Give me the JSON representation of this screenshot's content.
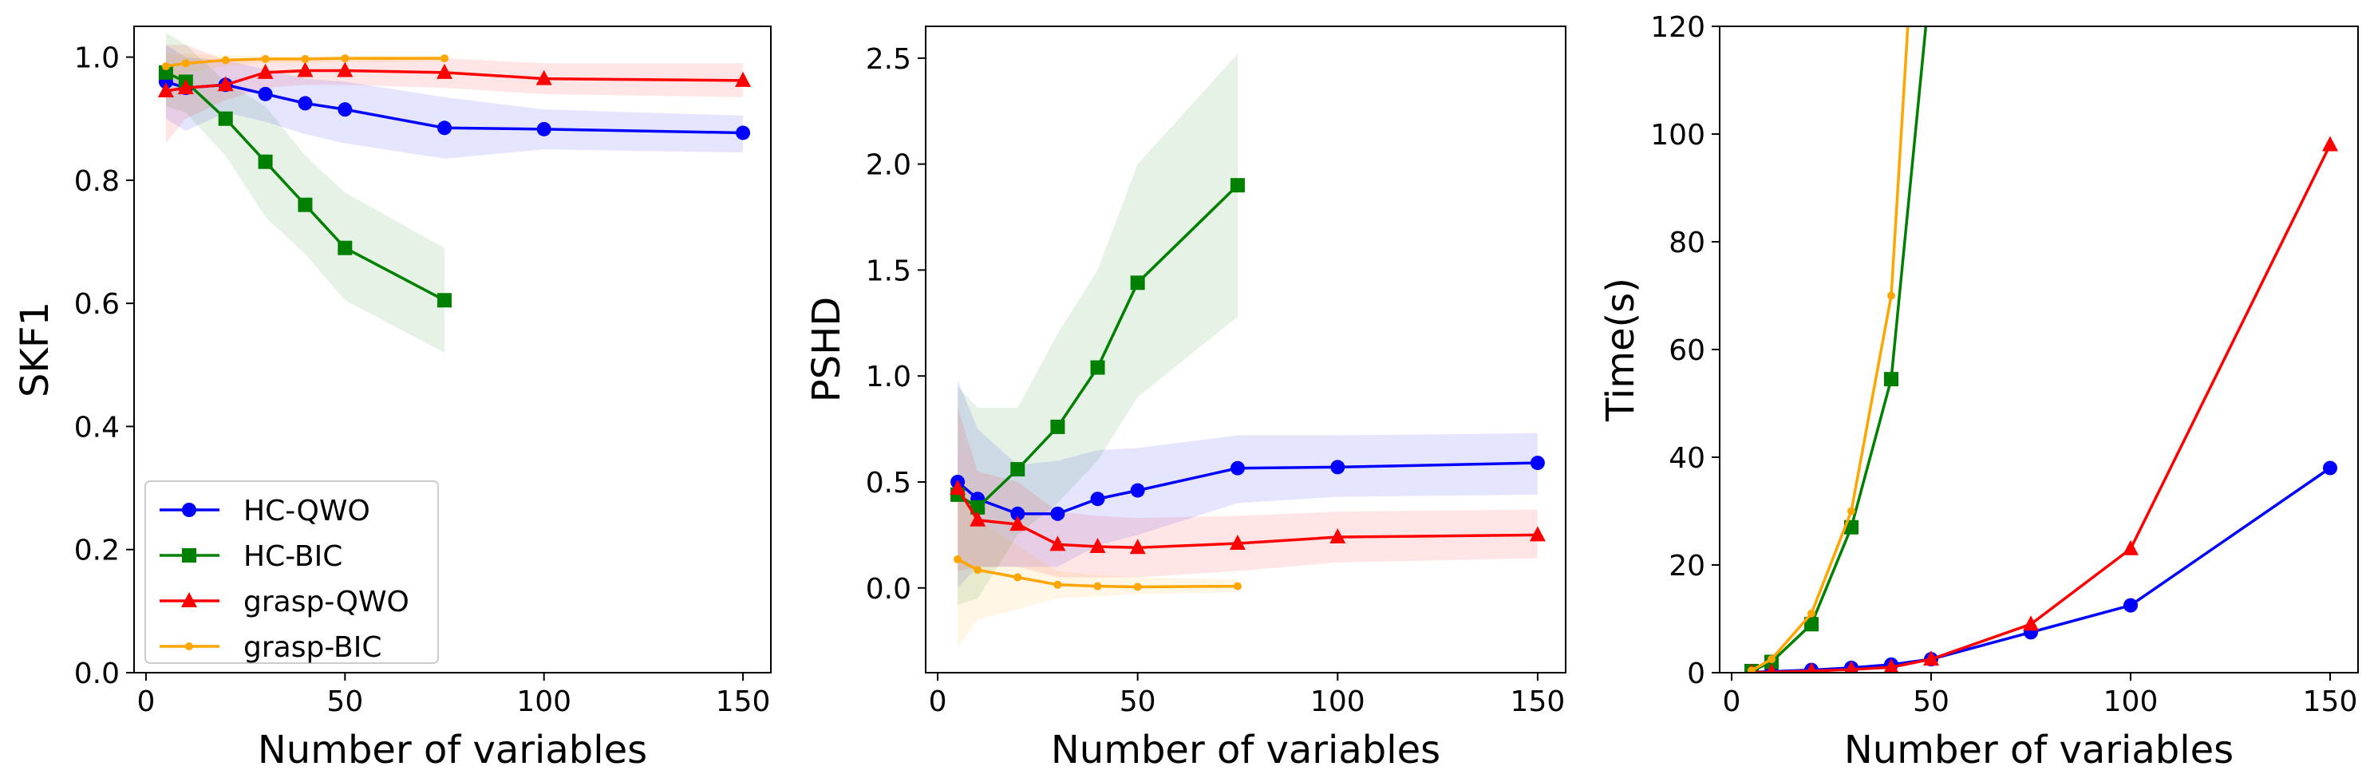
{
  "series_styles": [
    {
      "name": "HC-QWO",
      "color": "#0000ff",
      "marker": "circle"
    },
    {
      "name": "HC-BIC",
      "color": "#008000",
      "marker": "square"
    },
    {
      "name": "grasp-QWO",
      "color": "#ff0000",
      "marker": "triangle"
    },
    {
      "name": "grasp-BIC",
      "color": "#ffa500",
      "marker": "point"
    }
  ],
  "chart_data": [
    {
      "type": "line",
      "title": "",
      "xlabel": "Number of variables",
      "ylabel": "SKF1",
      "xlim": [
        -3,
        157
      ],
      "ylim": [
        0.0,
        1.05
      ],
      "xticks": [
        0,
        50,
        100,
        150
      ],
      "yticks": [
        0.0,
        0.2,
        0.4,
        0.6,
        0.8,
        1.0
      ],
      "ytick_labels": [
        "0.0",
        "0.2",
        "0.4",
        "0.6",
        "0.8",
        "1.0"
      ],
      "grid": false,
      "legend": {
        "placement": "lower-left",
        "entries": [
          "HC-QWO",
          "HC-BIC",
          "grasp-QWO",
          "grasp-BIC"
        ]
      },
      "series": [
        {
          "name": "HC-QWO",
          "x": [
            5,
            10,
            20,
            30,
            40,
            50,
            75,
            100,
            150
          ],
          "y": [
            0.96,
            0.95,
            0.955,
            0.94,
            0.925,
            0.915,
            0.885,
            0.883,
            0.877
          ],
          "lower": [
            0.9,
            0.88,
            0.91,
            0.895,
            0.875,
            0.86,
            0.835,
            0.85,
            0.845
          ],
          "upper": [
            1.02,
            1.0,
            0.995,
            0.98,
            0.965,
            0.96,
            0.935,
            0.915,
            0.905
          ]
        },
        {
          "name": "HC-BIC",
          "x": [
            5,
            10,
            20,
            30,
            40,
            50,
            75
          ],
          "y": [
            0.975,
            0.96,
            0.9,
            0.83,
            0.76,
            0.69,
            0.605
          ],
          "lower": [
            0.92,
            0.91,
            0.84,
            0.74,
            0.68,
            0.605,
            0.52
          ],
          "upper": [
            1.04,
            1.02,
            0.96,
            0.92,
            0.84,
            0.78,
            0.69
          ]
        },
        {
          "name": "grasp-QWO",
          "x": [
            5,
            10,
            20,
            30,
            40,
            50,
            75,
            100,
            150
          ],
          "y": [
            0.945,
            0.95,
            0.955,
            0.975,
            0.978,
            0.978,
            0.975,
            0.965,
            0.962
          ],
          "lower": [
            0.86,
            0.9,
            0.93,
            0.95,
            0.955,
            0.955,
            0.95,
            0.94,
            0.935
          ],
          "upper": [
            1.02,
            1.02,
            0.995,
            0.995,
            0.995,
            0.995,
            0.998,
            0.99,
            0.99
          ]
        },
        {
          "name": "grasp-BIC",
          "x": [
            5,
            10,
            20,
            30,
            40,
            50,
            75
          ],
          "y": [
            0.985,
            0.99,
            0.995,
            0.997,
            0.997,
            0.998,
            0.998
          ],
          "lower": [
            0.96,
            0.975,
            0.985,
            0.99,
            0.99,
            0.992,
            0.993
          ],
          "upper": [
            1.005,
            1.005,
            1.003,
            1.002,
            1.002,
            1.002,
            1.002
          ]
        }
      ]
    },
    {
      "type": "line",
      "title": "",
      "xlabel": "Number of variables",
      "ylabel": "PSHD",
      "xlim": [
        -3,
        157
      ],
      "ylim": [
        -0.4,
        2.65
      ],
      "xticks": [
        0,
        50,
        100,
        150
      ],
      "yticks": [
        0.0,
        0.5,
        1.0,
        1.5,
        2.0,
        2.5
      ],
      "ytick_labels": [
        "0.0",
        "0.5",
        "1.0",
        "1.5",
        "2.0",
        "2.5"
      ],
      "grid": false,
      "legend": null,
      "series": [
        {
          "name": "HC-QWO",
          "x": [
            5,
            10,
            20,
            30,
            40,
            50,
            75,
            100,
            150
          ],
          "y": [
            0.5,
            0.42,
            0.35,
            0.35,
            0.42,
            0.46,
            0.565,
            0.57,
            0.59
          ],
          "lower": [
            0.0,
            0.1,
            0.1,
            0.1,
            0.2,
            0.25,
            0.4,
            0.43,
            0.44
          ],
          "upper": [
            0.98,
            0.75,
            0.58,
            0.6,
            0.65,
            0.66,
            0.72,
            0.72,
            0.73
          ]
        },
        {
          "name": "HC-BIC",
          "x": [
            5,
            10,
            20,
            30,
            40,
            50,
            75
          ],
          "y": [
            0.44,
            0.38,
            0.56,
            0.76,
            1.04,
            1.44,
            1.9
          ],
          "lower": [
            -0.08,
            -0.05,
            0.25,
            0.4,
            0.6,
            0.9,
            1.28
          ],
          "upper": [
            0.95,
            0.85,
            0.85,
            1.2,
            1.5,
            2.0,
            2.52
          ]
        },
        {
          "name": "grasp-QWO",
          "x": [
            5,
            10,
            20,
            30,
            40,
            50,
            75,
            100,
            150
          ],
          "y": [
            0.47,
            0.32,
            0.3,
            0.205,
            0.195,
            0.19,
            0.21,
            0.24,
            0.25
          ],
          "lower": [
            0.08,
            0.1,
            0.1,
            0.05,
            0.05,
            0.05,
            0.08,
            0.12,
            0.14
          ],
          "upper": [
            0.85,
            0.55,
            0.5,
            0.36,
            0.34,
            0.33,
            0.34,
            0.36,
            0.37
          ]
        },
        {
          "name": "grasp-BIC",
          "x": [
            5,
            10,
            20,
            30,
            40,
            50,
            75
          ],
          "y": [
            0.135,
            0.085,
            0.05,
            0.015,
            0.008,
            0.005,
            0.008
          ],
          "lower": [
            -0.28,
            -0.15,
            -0.1,
            -0.05,
            -0.04,
            -0.03,
            -0.02
          ],
          "upper": [
            0.52,
            0.32,
            0.2,
            0.08,
            0.06,
            0.05,
            0.04
          ]
        }
      ]
    },
    {
      "type": "line",
      "title": "",
      "xlabel": "Number of variables",
      "ylabel": "Time(s)",
      "xlim": [
        -3,
        157
      ],
      "ylim": [
        0,
        120
      ],
      "xticks": [
        0,
        50,
        100,
        150
      ],
      "yticks": [
        0,
        20,
        40,
        60,
        80,
        100,
        120
      ],
      "ytick_labels": [
        "0",
        "20",
        "40",
        "60",
        "80",
        "100",
        "120"
      ],
      "grid": false,
      "legend": null,
      "series": [
        {
          "name": "HC-QWO",
          "x": [
            5,
            10,
            20,
            30,
            40,
            50,
            75,
            100,
            150
          ],
          "y": [
            0.1,
            0.2,
            0.5,
            0.9,
            1.5,
            2.5,
            7.5,
            12.5,
            38
          ]
        },
        {
          "name": "HC-BIC",
          "x": [
            5,
            10,
            20,
            30,
            40,
            50
          ],
          "y": [
            0.3,
            2.0,
            9.0,
            27.0,
            54.5,
            130
          ]
        },
        {
          "name": "grasp-QWO",
          "x": [
            5,
            10,
            20,
            30,
            40,
            50,
            75,
            100,
            150
          ],
          "y": [
            0.05,
            0.1,
            0.3,
            0.6,
            1.0,
            2.5,
            9.0,
            23.0,
            98
          ]
        },
        {
          "name": "grasp-BIC",
          "x": [
            5,
            10,
            20,
            30,
            40,
            45
          ],
          "y": [
            0.4,
            2.5,
            11.0,
            30.0,
            70.0,
            130
          ]
        }
      ]
    }
  ]
}
